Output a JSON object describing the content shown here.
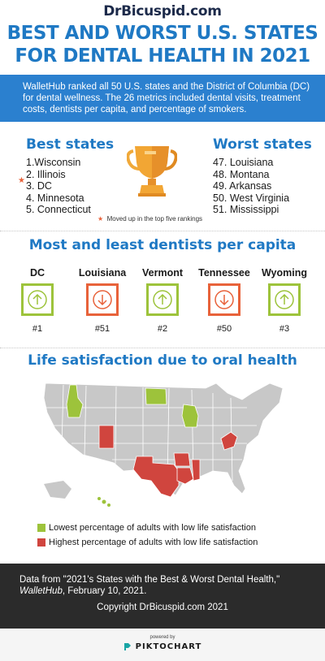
{
  "brand": "DrBicuspid.com",
  "title_line1": "BEST AND WORST U.S. STATES",
  "title_line2": "FOR DENTAL HEALTH IN 2021",
  "intro": "WalletHub ranked all 50 U.S. states and the District of Columbia (DC) for dental wellness. The 26 metrics included dental visits, treatment costs, dentists per capita, and percentage of smokers.",
  "best": {
    "heading": "Best states",
    "items": [
      "1.Wisconsin",
      "2. Illinois",
      "3. DC",
      "4. Minnesota",
      "5. Connecticut"
    ]
  },
  "worst": {
    "heading": "Worst states",
    "items": [
      "47. Louisiana",
      "48. Montana",
      "49. Arkansas",
      "50. West Virginia",
      "51. Mississippi"
    ]
  },
  "star_note": "Moved up in the top five rankings",
  "dentists": {
    "heading": "Most and least dentists per capita",
    "items": [
      {
        "name": "DC",
        "rank": "#1",
        "dir": "up"
      },
      {
        "name": "Louisiana",
        "rank": "#51",
        "dir": "down"
      },
      {
        "name": "Vermont",
        "rank": "#2",
        "dir": "up"
      },
      {
        "name": "Tennessee",
        "rank": "#50",
        "dir": "down"
      },
      {
        "name": "Wyoming",
        "rank": "#3",
        "dir": "up"
      }
    ]
  },
  "life": {
    "heading": "Life satisfaction due to oral health",
    "legend_low": "Lowest percentage of adults with low life satisfaction",
    "legend_high": "Highest percentage of adults with low life satisfaction"
  },
  "colors": {
    "blue": "#1f79c4",
    "green": "#9dc33b",
    "orange": "#e8623a",
    "red": "#d0453e",
    "map_gray": "#c8c8c8",
    "footer": "#2b2b2b"
  },
  "footer": {
    "source_line1": "Data from \"2021's States with the Best & Worst Dental Health,\"",
    "source_pub": "WalletHub",
    "source_date": ", February 10, 2021.",
    "copyright": "Copyright DrBicuspid.com 2021",
    "powered_by": "powered by",
    "piktochart": "PIKTOCHART"
  }
}
